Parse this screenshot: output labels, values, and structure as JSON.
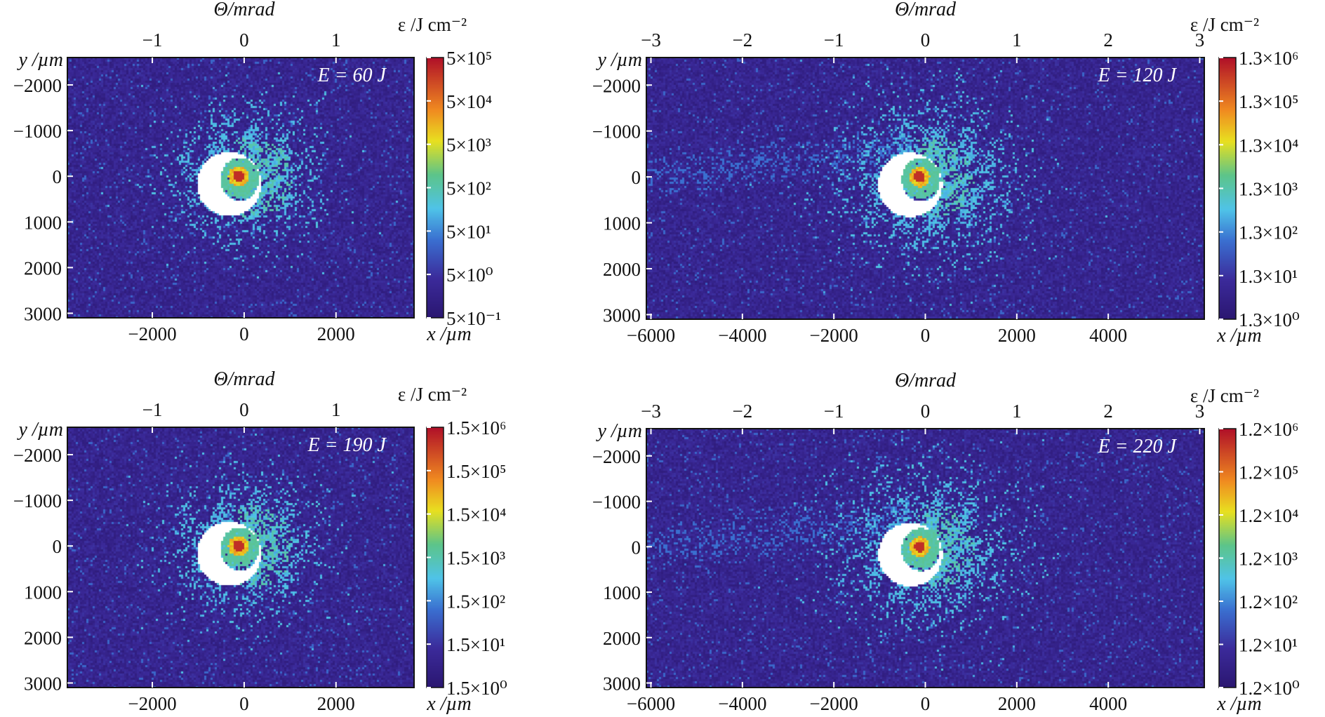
{
  "chart_data": [
    {
      "type": "heatmap",
      "panel": "top-left",
      "annotation": "E = 60 J",
      "top_axis": {
        "label": "Θ/mrad",
        "ticks": [
          -1,
          0,
          1
        ],
        "tick_labels": [
          "−1",
          "0",
          "1"
        ]
      },
      "x_axis": {
        "label": "x /µm",
        "lim": [
          -3850,
          3700
        ],
        "ticks": [
          -2000,
          0,
          2000
        ],
        "tick_labels": [
          "−2000",
          "0",
          "2000"
        ]
      },
      "y_axis": {
        "label": "y /µm",
        "lim": [
          -2600,
          3100
        ],
        "ticks": [
          -2000,
          -1000,
          0,
          1000,
          2000,
          3000
        ],
        "tick_labels": [
          "−2000",
          "−1000",
          "0",
          "1000",
          "2000",
          "3000"
        ]
      },
      "colorbar": {
        "label": "ε /J cm⁻²",
        "scale": "log",
        "tick_labels": [
          "5×10⁵",
          "5×10⁴",
          "5×10³",
          "5×10²",
          "5×10¹",
          "5×10⁰",
          "5×10⁻¹"
        ],
        "range": [
          0.5,
          500000
        ]
      }
    },
    {
      "type": "heatmap",
      "panel": "top-right",
      "annotation": "E = 120 J",
      "top_axis": {
        "label": "Θ/mrad",
        "ticks": [
          -3,
          -2,
          -1,
          0,
          1,
          2,
          3
        ],
        "tick_labels": [
          "−3",
          "−2",
          "−1",
          "0",
          "1",
          "2",
          "3"
        ]
      },
      "x_axis": {
        "label": "x /µm",
        "lim": [
          -6100,
          6100
        ],
        "ticks": [
          -6000,
          -4000,
          -2000,
          0,
          2000,
          4000
        ],
        "tick_labels": [
          "−6000",
          "−4000",
          "−2000",
          "0",
          "2000",
          "4000"
        ]
      },
      "y_axis": {
        "label": "y /µm",
        "lim": [
          -2600,
          3100
        ],
        "ticks": [
          -2000,
          -1000,
          0,
          1000,
          2000,
          3000
        ],
        "tick_labels": [
          "−2000",
          "−1000",
          "0",
          "1000",
          "2000",
          "3000"
        ]
      },
      "colorbar": {
        "label": "ε /J cm⁻²",
        "scale": "log",
        "tick_labels": [
          "1.3×10⁶",
          "1.3×10⁵",
          "1.3×10⁴",
          "1.3×10³",
          "1.3×10²",
          "1.3×10¹",
          "1.3×10⁰"
        ],
        "range": [
          1.3,
          1300000
        ]
      }
    },
    {
      "type": "heatmap",
      "panel": "bottom-left",
      "annotation": "E = 190 J",
      "top_axis": {
        "label": "Θ/mrad",
        "ticks": [
          -1,
          0,
          1
        ],
        "tick_labels": [
          "−1",
          "0",
          "1"
        ]
      },
      "x_axis": {
        "label": "x /µm",
        "lim": [
          -3850,
          3700
        ],
        "ticks": [
          -2000,
          0,
          2000
        ],
        "tick_labels": [
          "−2000",
          "0",
          "2000"
        ]
      },
      "y_axis": {
        "label": "y /µm",
        "lim": [
          -2600,
          3100
        ],
        "ticks": [
          -2000,
          -1000,
          0,
          1000,
          2000,
          3000
        ],
        "tick_labels": [
          "−2000",
          "−1000",
          "0",
          "1000",
          "2000",
          "3000"
        ]
      },
      "colorbar": {
        "label": "ε /J cm⁻²",
        "scale": "log",
        "tick_labels": [
          "1.5×10⁶",
          "1.5×10⁵",
          "1.5×10⁴",
          "1.5×10³",
          "1.5×10²",
          "1.5×10¹",
          "1.5×10⁰"
        ],
        "range": [
          1.5,
          1500000
        ]
      }
    },
    {
      "type": "heatmap",
      "panel": "bottom-right",
      "annotation": "E = 220 J",
      "top_axis": {
        "label": "Θ/mrad",
        "ticks": [
          -3,
          -2,
          -1,
          0,
          1,
          2,
          3
        ],
        "tick_labels": [
          "−3",
          "−2",
          "−1",
          "0",
          "1",
          "2",
          "3"
        ]
      },
      "x_axis": {
        "label": "x /µm",
        "lim": [
          -6100,
          6100
        ],
        "ticks": [
          -6000,
          -4000,
          -2000,
          0,
          2000,
          4000
        ],
        "tick_labels": [
          "−6000",
          "−4000",
          "−2000",
          "0",
          "2000",
          "4000"
        ]
      },
      "y_axis": {
        "label": "y /µm",
        "lim": [
          -2600,
          3100
        ],
        "ticks": [
          -2000,
          -1000,
          0,
          1000,
          2000,
          3000
        ],
        "tick_labels": [
          "−2000",
          "−1000",
          "0",
          "1000",
          "2000",
          "3000"
        ]
      },
      "colorbar": {
        "label": "ε /J cm⁻²",
        "scale": "log",
        "tick_labels": [
          "1.2×10⁶",
          "1.2×10⁵",
          "1.2×10⁴",
          "1.2×10³",
          "1.2×10²",
          "1.2×10¹",
          "1.2×10⁰"
        ],
        "range": [
          1.2,
          1200000
        ]
      }
    }
  ],
  "colors": {
    "low": "#2a1670",
    "mid": "#4fc3e8",
    "high": "#b01028",
    "blocked": "#ffffff"
  }
}
